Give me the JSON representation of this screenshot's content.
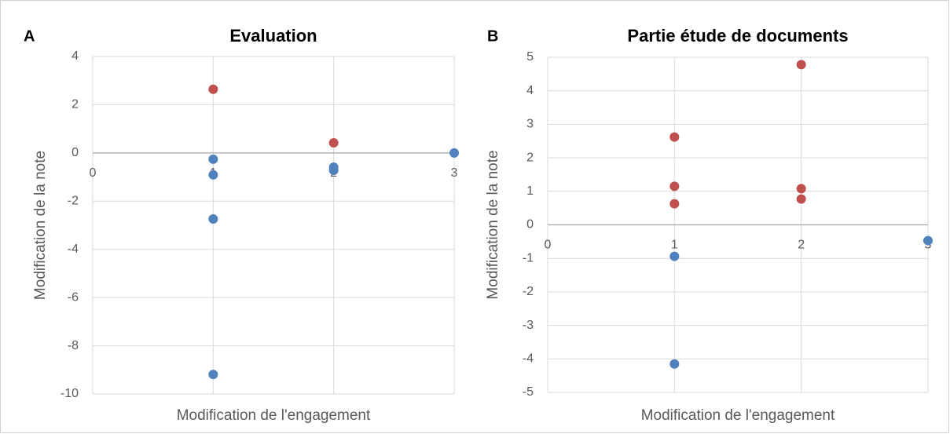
{
  "chart_data": [
    {
      "type": "scatter",
      "panel_label": "A",
      "title": "Evaluation",
      "x_label": "Modification de l'engagement",
      "y_label": "Modification de la note",
      "xlim": [
        0,
        3
      ],
      "xticks": [
        0,
        1,
        2,
        3
      ],
      "ylim": [
        -10,
        4
      ],
      "yticks": [
        -10,
        -8,
        -6,
        -4,
        -2,
        0,
        2,
        4
      ],
      "grid": true,
      "series": [
        {
          "color": "#c0504d",
          "x": [
            1,
            2
          ],
          "values": [
            2.64,
            0.42
          ]
        },
        {
          "color": "#4f81bd",
          "x": [
            1,
            1,
            1,
            1,
            2,
            2,
            3
          ],
          "values": [
            -0.26,
            -0.91,
            -2.74,
            -9.19,
            -0.59,
            -0.72,
            0
          ]
        }
      ]
    },
    {
      "type": "scatter",
      "panel_label": "B",
      "title": "Partie étude de documents",
      "x_label": "Modification de l'engagement",
      "y_label": "Modification de la note",
      "xlim": [
        0,
        3
      ],
      "xticks": [
        0,
        1,
        2,
        3
      ],
      "ylim": [
        -5,
        5
      ],
      "yticks": [
        -5,
        -4,
        -3,
        -2,
        -1,
        0,
        1,
        2,
        3,
        4,
        5
      ],
      "grid": true,
      "series": [
        {
          "color": "#c0504d",
          "x": [
            1,
            1,
            1,
            2,
            2,
            2
          ],
          "values": [
            2.62,
            1.15,
            0.63,
            4.78,
            1.08,
            0.77
          ]
        },
        {
          "color": "#4f81bd",
          "x": [
            1,
            1,
            3
          ],
          "values": [
            -0.94,
            -4.15,
            -0.47
          ]
        }
      ]
    }
  ]
}
